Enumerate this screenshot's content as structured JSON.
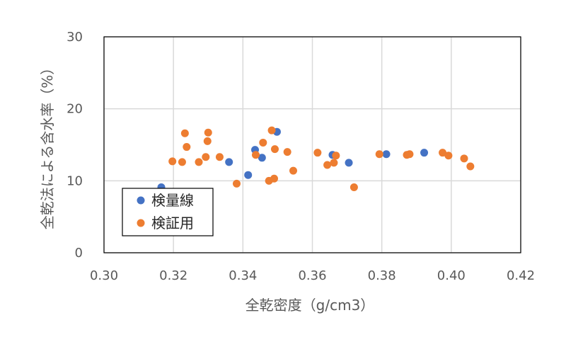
{
  "chart_data": {
    "type": "scatter",
    "xlabel": "全乾密度（g/cm3）",
    "ylabel": "全乾法による含水率（%）",
    "xlim": [
      0.3,
      0.42
    ],
    "ylim": [
      0,
      30
    ],
    "x_ticks": [
      "0.30",
      "0.32",
      "0.34",
      "0.36",
      "0.38",
      "0.40",
      "0.42"
    ],
    "y_ticks": [
      "0",
      "10",
      "20",
      "30"
    ],
    "grid": true,
    "legend_position": "bottom-left",
    "series": [
      {
        "name": "検量線",
        "color": "#4472C4",
        "points": [
          [
            0.3165,
            9.1
          ],
          [
            0.336,
            12.6
          ],
          [
            0.3415,
            10.8
          ],
          [
            0.3435,
            14.3
          ],
          [
            0.3455,
            13.2
          ],
          [
            0.3498,
            16.8
          ],
          [
            0.3658,
            13.6
          ],
          [
            0.3705,
            12.5
          ],
          [
            0.3813,
            13.7
          ],
          [
            0.3922,
            13.9
          ]
        ]
      },
      {
        "name": "検証用",
        "color": "#ED7D31",
        "points": [
          [
            0.3197,
            12.7
          ],
          [
            0.3225,
            12.6
          ],
          [
            0.3233,
            16.6
          ],
          [
            0.3238,
            14.7
          ],
          [
            0.3273,
            12.6
          ],
          [
            0.3293,
            13.3
          ],
          [
            0.3298,
            15.5
          ],
          [
            0.33,
            16.7
          ],
          [
            0.3333,
            13.3
          ],
          [
            0.3382,
            9.6
          ],
          [
            0.3437,
            13.6
          ],
          [
            0.3458,
            15.3
          ],
          [
            0.3475,
            10.0
          ],
          [
            0.3483,
            17.0
          ],
          [
            0.349,
            10.3
          ],
          [
            0.3492,
            14.4
          ],
          [
            0.3528,
            14.0
          ],
          [
            0.3545,
            11.4
          ],
          [
            0.3615,
            13.9
          ],
          [
            0.3643,
            12.2
          ],
          [
            0.3662,
            12.5
          ],
          [
            0.3668,
            13.5
          ],
          [
            0.372,
            9.1
          ],
          [
            0.3793,
            13.7
          ],
          [
            0.3872,
            13.6
          ],
          [
            0.388,
            13.7
          ],
          [
            0.3975,
            13.9
          ],
          [
            0.3992,
            13.5
          ],
          [
            0.4037,
            13.1
          ],
          [
            0.4055,
            12.0
          ]
        ]
      }
    ]
  }
}
